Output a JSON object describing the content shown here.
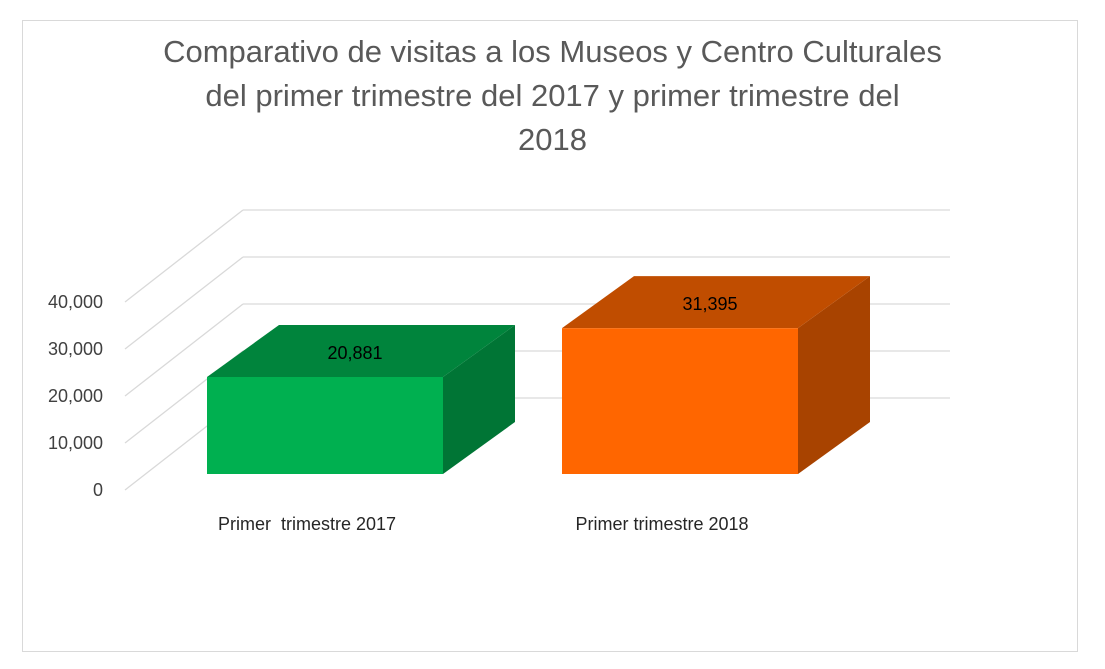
{
  "chart_data": {
    "type": "bar",
    "style": "3d-column",
    "title_lines": [
      "Comparativo de visitas a los Museos y Centro Culturales",
      "del  primer trimestre del 2017 y  primer trimestre del",
      "2018"
    ],
    "categories": [
      "Primer  trimestre 2017",
      "Primer trimestre 2018"
    ],
    "values": [
      20881,
      31395
    ],
    "data_labels": [
      "20,881",
      "31,395"
    ],
    "y_ticks": [
      "0",
      "10,000",
      "20,000",
      "30,000",
      "40,000"
    ],
    "ylim": [
      0,
      40000
    ],
    "grid": true,
    "legend": "none",
    "colors": {
      "front": [
        "#00b050",
        "#ff6600"
      ],
      "top": [
        "#00843c",
        "#c04d00"
      ],
      "side": [
        "#007535",
        "#a84300"
      ],
      "grid": "#d9d9d9"
    }
  }
}
